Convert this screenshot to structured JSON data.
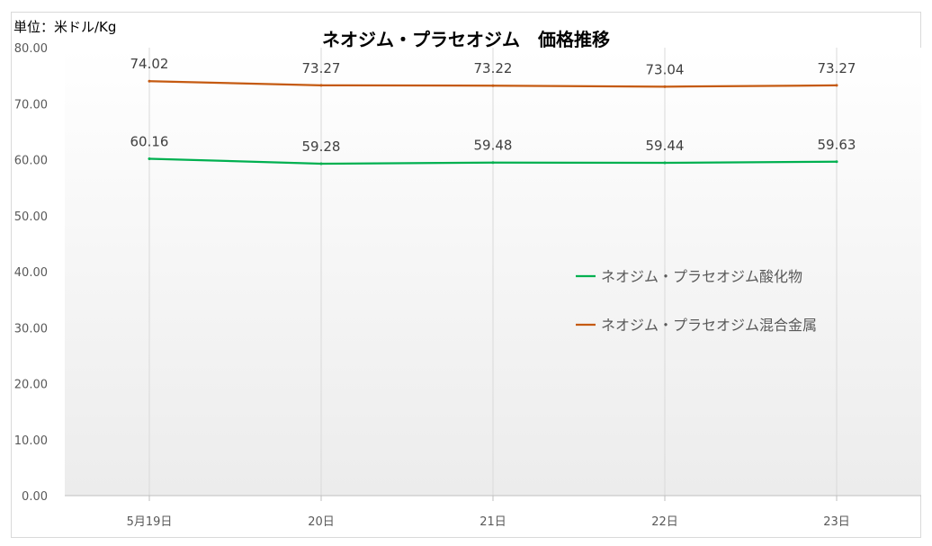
{
  "unit_label": "単位：米ドル/Kg",
  "chart_data": {
    "type": "line",
    "title": "ネオジム・プラセオジム　価格推移",
    "categories": [
      "5月19日",
      "20日",
      "21日",
      "22日",
      "23日"
    ],
    "ylim": [
      0,
      80
    ],
    "yticks": [
      "0.00",
      "10.00",
      "20.00",
      "30.00",
      "40.00",
      "50.00",
      "60.00",
      "70.00",
      "80.00"
    ],
    "grid": "vertical",
    "legend_position": "right",
    "series": [
      {
        "name": "ネオジム・プラセオジム酸化物",
        "color": "#00b050",
        "values": [
          60.16,
          59.28,
          59.48,
          59.44,
          59.63
        ],
        "labels": [
          "60.16",
          "59.28",
          "59.48",
          "59.44",
          "59.63"
        ]
      },
      {
        "name": "ネオジム・プラセオジム混合金属",
        "color": "#c55a11",
        "values": [
          74.02,
          73.27,
          73.22,
          73.04,
          73.27
        ],
        "labels": [
          "74.02",
          "73.27",
          "73.22",
          "73.04",
          "73.27"
        ]
      }
    ]
  }
}
